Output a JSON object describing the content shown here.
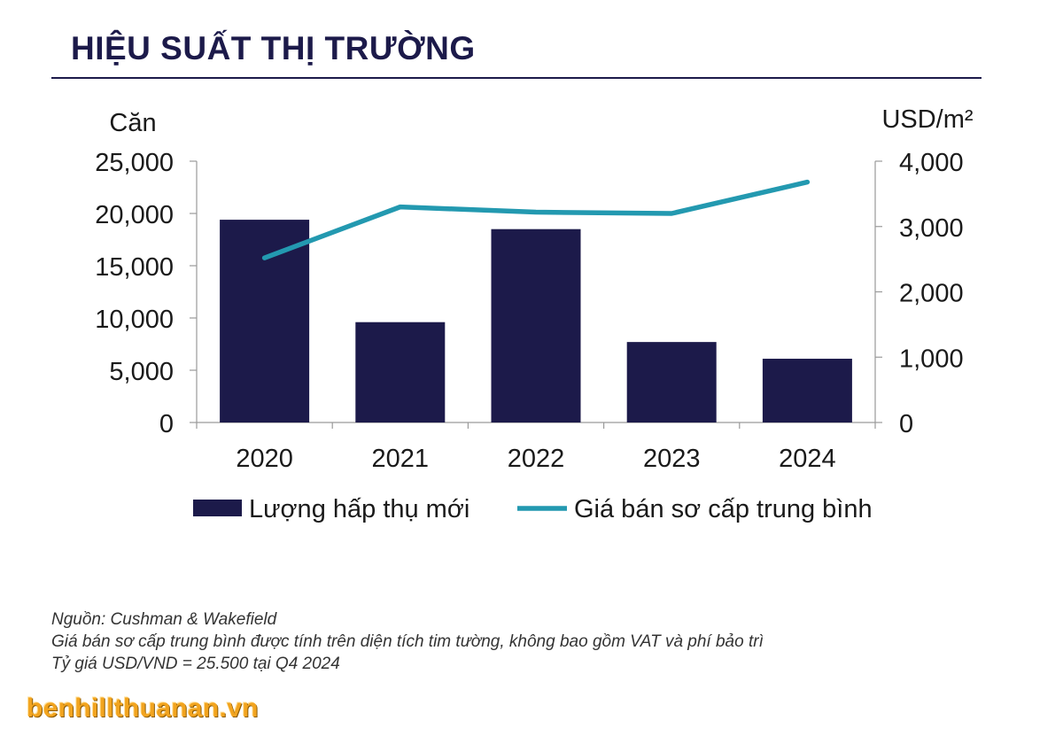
{
  "header": {
    "title": "HIỆU SUẤT THỊ TRƯỜNG"
  },
  "colors": {
    "bar": "#1c1a4a",
    "line": "#2399b0",
    "title": "#1c1a4a",
    "axis": "#9a9a9a"
  },
  "chart_data": {
    "type": "bar",
    "categories": [
      "2020",
      "2021",
      "2022",
      "2023",
      "2024"
    ],
    "series": [
      {
        "name": "Lượng hấp thụ mới",
        "type": "bar",
        "axis": "left",
        "values": [
          19400,
          9600,
          18500,
          7700,
          6100
        ]
      },
      {
        "name": "Giá bán sơ cấp trung bình",
        "type": "line",
        "axis": "right",
        "values": [
          2520,
          3300,
          3220,
          3200,
          3680
        ]
      }
    ],
    "ylabel_left": "Căn",
    "ylabel_right": "USD/m²",
    "ylim_left": [
      0,
      25000
    ],
    "ylim_right": [
      0,
      4000
    ],
    "yticks_left": [
      "0",
      "5,000",
      "10,000",
      "15,000",
      "20,000",
      "25,000"
    ],
    "yticks_right": [
      "0",
      "1,000",
      "2,000",
      "3,000",
      "4,000"
    ],
    "grid": false,
    "legend_position": "bottom"
  },
  "notes": {
    "source": "Nguồn: Cushman & Wakefield",
    "line2": "Giá bán sơ cấp trung bình được tính trên diện tích tim tường, không bao gồm VAT và phí bảo trì",
    "line3": "Tỷ giá USD/VND = 25.500 tại Q4 2024"
  },
  "watermark": {
    "text": "benhillthuanan.vn"
  }
}
